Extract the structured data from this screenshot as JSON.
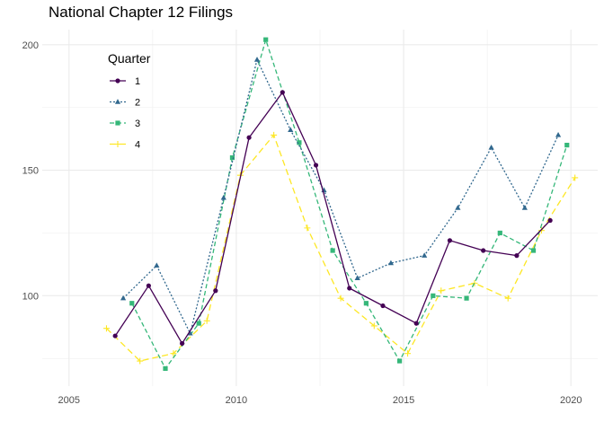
{
  "chart_data": {
    "type": "line",
    "title": "National Chapter 12 Filings",
    "xlabel": "",
    "ylabel": "",
    "xlim": [
      2004.2,
      2020.8
    ],
    "ylim": [
      64,
      206
    ],
    "x_ticks": [
      2005,
      2010,
      2015,
      2020
    ],
    "y_ticks": [
      100,
      150,
      200
    ],
    "grid": true,
    "legend": {
      "title": "Quarter",
      "position": "top-left"
    },
    "series": [
      {
        "name": "1",
        "color": "#440154",
        "line": "solid",
        "marker": "circle",
        "points": [
          [
            2006.38,
            84
          ],
          [
            2007.38,
            104
          ],
          [
            2008.38,
            81
          ],
          [
            2009.38,
            102
          ],
          [
            2010.38,
            163
          ],
          [
            2011.38,
            181
          ],
          [
            2012.38,
            152
          ],
          [
            2013.38,
            103
          ],
          [
            2014.38,
            96
          ],
          [
            2015.38,
            89
          ],
          [
            2016.38,
            122
          ],
          [
            2017.38,
            118
          ],
          [
            2018.38,
            116
          ],
          [
            2019.38,
            130
          ]
        ]
      },
      {
        "name": "2",
        "color": "#31688E",
        "line": "dotted",
        "marker": "triangle",
        "points": [
          [
            2006.62,
            99
          ],
          [
            2007.62,
            112
          ],
          [
            2008.62,
            85
          ],
          [
            2009.62,
            139
          ],
          [
            2010.62,
            194
          ],
          [
            2011.62,
            166
          ],
          [
            2012.62,
            142
          ],
          [
            2013.62,
            107
          ],
          [
            2014.62,
            113
          ],
          [
            2015.62,
            116
          ],
          [
            2016.62,
            135
          ],
          [
            2017.62,
            159
          ],
          [
            2018.62,
            135
          ],
          [
            2019.62,
            164
          ]
        ]
      },
      {
        "name": "3",
        "color": "#35B779",
        "line": "dashed",
        "marker": "square",
        "points": [
          [
            2006.88,
            97
          ],
          [
            2007.88,
            71
          ],
          [
            2008.88,
            89
          ],
          [
            2009.88,
            155
          ],
          [
            2010.88,
            202
          ],
          [
            2011.88,
            161
          ],
          [
            2012.88,
            118
          ],
          [
            2013.88,
            97
          ],
          [
            2014.88,
            74
          ],
          [
            2015.88,
            100
          ],
          [
            2016.88,
            99
          ],
          [
            2017.88,
            125
          ],
          [
            2018.88,
            118
          ],
          [
            2019.88,
            160
          ]
        ]
      },
      {
        "name": "4",
        "color": "#FDE725",
        "line": "longdash",
        "marker": "plus",
        "points": [
          [
            2006.12,
            87
          ],
          [
            2007.12,
            74
          ],
          [
            2008.12,
            77
          ],
          [
            2009.12,
            90
          ],
          [
            2010.12,
            148
          ],
          [
            2011.12,
            164
          ],
          [
            2012.12,
            127
          ],
          [
            2013.12,
            99
          ],
          [
            2014.12,
            88
          ],
          [
            2015.12,
            77
          ],
          [
            2016.12,
            102
          ],
          [
            2017.12,
            105
          ],
          [
            2018.12,
            99
          ],
          [
            2019.12,
            126
          ],
          [
            2020.12,
            147
          ]
        ]
      }
    ]
  }
}
